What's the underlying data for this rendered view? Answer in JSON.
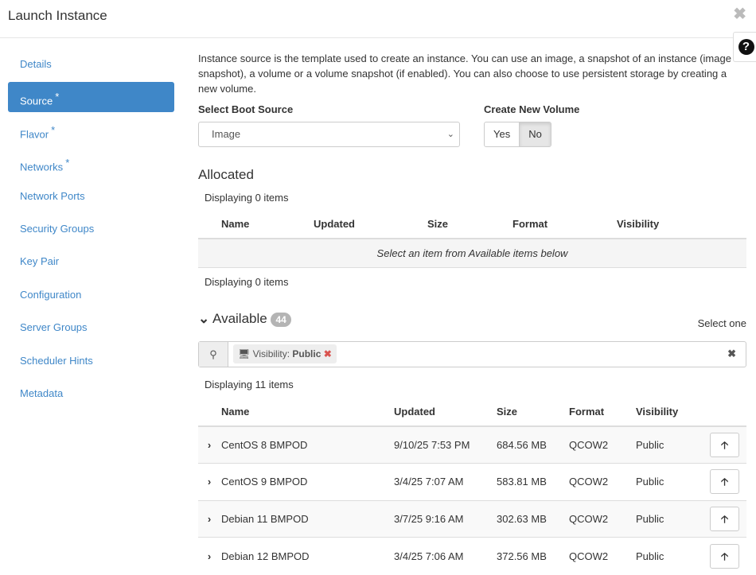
{
  "header": {
    "title": "Launch Instance",
    "close_icon": "close-icon",
    "help_icon": "question-circle-icon"
  },
  "sidebar": {
    "items": [
      {
        "label": "Details",
        "required": false,
        "active": false
      },
      {
        "label": "Source",
        "required": true,
        "active": true
      },
      {
        "label": "Flavor",
        "required": true,
        "active": false
      },
      {
        "label": "Networks",
        "required": true,
        "active": false
      },
      {
        "label": "Network Ports",
        "required": false,
        "active": false
      },
      {
        "label": "Security Groups",
        "required": false,
        "active": false
      },
      {
        "label": "Key Pair",
        "required": false,
        "active": false
      },
      {
        "label": "Configuration",
        "required": false,
        "active": false
      },
      {
        "label": "Server Groups",
        "required": false,
        "active": false
      },
      {
        "label": "Scheduler Hints",
        "required": false,
        "active": false
      },
      {
        "label": "Metadata",
        "required": false,
        "active": false
      }
    ],
    "required_mark": "*"
  },
  "main": {
    "intro": "Instance source is the template used to create an instance. You can use an image, a snapshot of an instance (image snapshot), a volume or a volume snapshot (if enabled). You can also choose to use persistent storage by creating a new volume.",
    "boot_source_label": "Select Boot Source",
    "boot_source_value": "Image",
    "new_volume_label": "Create New Volume",
    "yes": "Yes",
    "no": "No",
    "new_volume_selected": "No",
    "allocated": {
      "title": "Allocated",
      "count_text": "Displaying 0 items",
      "columns": [
        "Name",
        "Updated",
        "Size",
        "Format",
        "Visibility"
      ],
      "empty": "Select an item from Available items below"
    },
    "available": {
      "title": "Available",
      "badge": "44",
      "select_hint": "Select one",
      "filter": {
        "key": "Visibility:",
        "value": "Public"
      },
      "count_text": "Displaying 11 items",
      "columns": [
        "Name",
        "Updated",
        "Size",
        "Format",
        "Visibility"
      ],
      "rows": [
        {
          "name": "CentOS 8 BMPOD",
          "updated": "9/10/25 7:53 PM",
          "size": "684.56 MB",
          "format": "QCOW2",
          "visibility": "Public"
        },
        {
          "name": "CentOS 9 BMPOD",
          "updated": "3/4/25 7:07 AM",
          "size": "583.81 MB",
          "format": "QCOW2",
          "visibility": "Public"
        },
        {
          "name": "Debian 11 BMPOD",
          "updated": "3/7/25 9:16 AM",
          "size": "302.63 MB",
          "format": "QCOW2",
          "visibility": "Public"
        },
        {
          "name": "Debian 12 BMPOD",
          "updated": "3/4/25 7:06 AM",
          "size": "372.56 MB",
          "format": "QCOW2",
          "visibility": "Public"
        }
      ]
    }
  }
}
